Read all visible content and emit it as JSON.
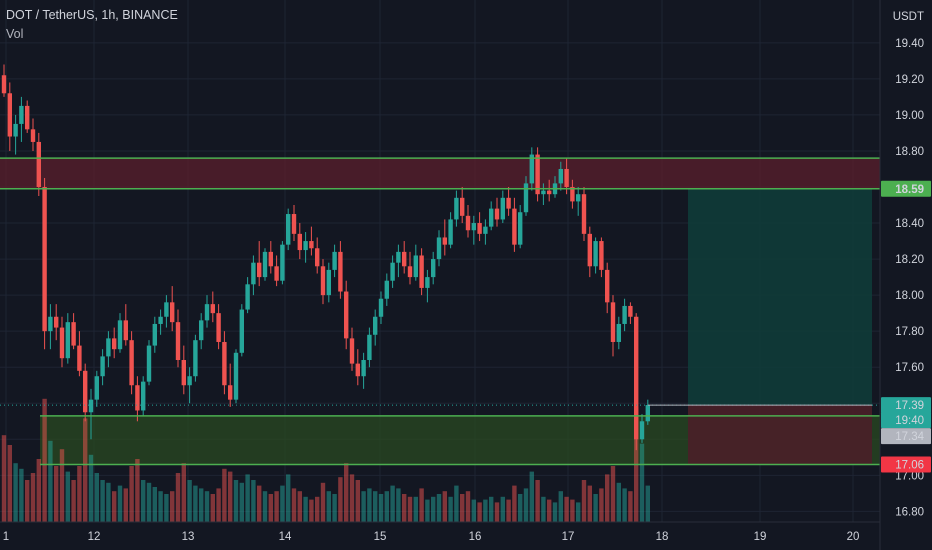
{
  "header": {
    "symbol_line": "DOT / TetherUS, 1h, BINANCE",
    "indicator": "Vol"
  },
  "axis": {
    "currency_label": "USDT"
  },
  "colors": {
    "background": "#131722",
    "grid": "#1e2433",
    "up": "#26a69a",
    "down": "#ef5350",
    "zone_line": "#4caf50",
    "resistance_fill": "#5b1f2c",
    "support_fill": "#2a4a22",
    "target_fill": "#0f3b38",
    "stop_fill": "#4a1f28"
  },
  "chart_data": {
    "type": "candlestick",
    "ylim": [
      16.78,
      19.46
    ],
    "x_tick_labels": [
      "1",
      "12",
      "13",
      "14",
      "15",
      "16",
      "17",
      "18",
      "19",
      "20"
    ],
    "y_tick_labels": [
      "19.40",
      "19.20",
      "19.00",
      "18.80",
      "18.60",
      "18.40",
      "18.20",
      "18.00",
      "17.80",
      "17.60",
      "17.40",
      "17.20",
      "17.00",
      "16.80"
    ],
    "price_labels": [
      {
        "label": "18.59",
        "value": 18.59,
        "kind": "zone-green"
      },
      {
        "label": "17.39",
        "value": 17.39,
        "kind": "last-price"
      },
      {
        "label": "19:40",
        "value": 17.39,
        "kind": "countdown"
      },
      {
        "label": "17.34",
        "value": 17.34,
        "kind": "grey"
      },
      {
        "label": "17.06",
        "value": 17.06,
        "kind": "stop-red"
      }
    ],
    "resistance_zone": [
      18.59,
      18.76
    ],
    "support_zone": [
      17.06,
      17.33
    ],
    "position": {
      "entry": 17.39,
      "target": 18.59,
      "stop": 17.06
    },
    "candles": [
      {
        "o": 19.22,
        "h": 19.28,
        "l": 19.1,
        "c": 19.12
      },
      {
        "o": 19.12,
        "h": 19.18,
        "l": 18.8,
        "c": 18.88
      },
      {
        "o": 18.88,
        "h": 19.0,
        "l": 18.78,
        "c": 18.95
      },
      {
        "o": 18.95,
        "h": 19.1,
        "l": 18.85,
        "c": 19.05
      },
      {
        "o": 19.05,
        "h": 19.08,
        "l": 18.9,
        "c": 18.92
      },
      {
        "o": 18.92,
        "h": 18.98,
        "l": 18.8,
        "c": 18.85
      },
      {
        "o": 18.85,
        "h": 18.9,
        "l": 18.55,
        "c": 18.6
      },
      {
        "o": 18.6,
        "h": 18.65,
        "l": 17.7,
        "c": 17.8
      },
      {
        "o": 17.8,
        "h": 17.95,
        "l": 17.7,
        "c": 17.88
      },
      {
        "o": 17.88,
        "h": 17.95,
        "l": 17.75,
        "c": 17.82
      },
      {
        "o": 17.82,
        "h": 17.88,
        "l": 17.6,
        "c": 17.65
      },
      {
        "o": 17.65,
        "h": 17.9,
        "l": 17.62,
        "c": 17.85
      },
      {
        "o": 17.85,
        "h": 17.9,
        "l": 17.7,
        "c": 17.72
      },
      {
        "o": 17.72,
        "h": 17.8,
        "l": 17.55,
        "c": 17.58
      },
      {
        "o": 17.58,
        "h": 17.62,
        "l": 17.3,
        "c": 17.35
      },
      {
        "o": 17.35,
        "h": 17.48,
        "l": 17.2,
        "c": 17.42
      },
      {
        "o": 17.42,
        "h": 17.58,
        "l": 17.38,
        "c": 17.55
      },
      {
        "o": 17.55,
        "h": 17.7,
        "l": 17.5,
        "c": 17.66
      },
      {
        "o": 17.66,
        "h": 17.8,
        "l": 17.6,
        "c": 17.76
      },
      {
        "o": 17.76,
        "h": 17.82,
        "l": 17.65,
        "c": 17.7
      },
      {
        "o": 17.7,
        "h": 17.9,
        "l": 17.68,
        "c": 17.86
      },
      {
        "o": 17.86,
        "h": 17.95,
        "l": 17.72,
        "c": 17.75
      },
      {
        "o": 17.75,
        "h": 17.8,
        "l": 17.45,
        "c": 17.5
      },
      {
        "o": 17.5,
        "h": 17.55,
        "l": 17.3,
        "c": 17.36
      },
      {
        "o": 17.36,
        "h": 17.55,
        "l": 17.33,
        "c": 17.52
      },
      {
        "o": 17.52,
        "h": 17.75,
        "l": 17.5,
        "c": 17.72
      },
      {
        "o": 17.72,
        "h": 17.88,
        "l": 17.68,
        "c": 17.84
      },
      {
        "o": 17.84,
        "h": 17.92,
        "l": 17.78,
        "c": 17.88
      },
      {
        "o": 17.88,
        "h": 18.0,
        "l": 17.82,
        "c": 17.96
      },
      {
        "o": 17.96,
        "h": 18.05,
        "l": 17.8,
        "c": 17.85
      },
      {
        "o": 17.85,
        "h": 17.92,
        "l": 17.6,
        "c": 17.64
      },
      {
        "o": 17.64,
        "h": 17.72,
        "l": 17.45,
        "c": 17.5
      },
      {
        "o": 17.5,
        "h": 17.6,
        "l": 17.4,
        "c": 17.55
      },
      {
        "o": 17.55,
        "h": 17.78,
        "l": 17.52,
        "c": 17.75
      },
      {
        "o": 17.75,
        "h": 17.9,
        "l": 17.7,
        "c": 17.86
      },
      {
        "o": 17.86,
        "h": 18.0,
        "l": 17.82,
        "c": 17.95
      },
      {
        "o": 17.95,
        "h": 18.02,
        "l": 17.85,
        "c": 17.9
      },
      {
        "o": 17.9,
        "h": 17.95,
        "l": 17.7,
        "c": 17.74
      },
      {
        "o": 17.74,
        "h": 17.8,
        "l": 17.45,
        "c": 17.5
      },
      {
        "o": 17.5,
        "h": 17.62,
        "l": 17.38,
        "c": 17.42
      },
      {
        "o": 17.42,
        "h": 17.7,
        "l": 17.4,
        "c": 17.68
      },
      {
        "o": 17.68,
        "h": 17.95,
        "l": 17.66,
        "c": 17.92
      },
      {
        "o": 17.92,
        "h": 18.1,
        "l": 17.9,
        "c": 18.06
      },
      {
        "o": 18.06,
        "h": 18.22,
        "l": 18.0,
        "c": 18.18
      },
      {
        "o": 18.18,
        "h": 18.3,
        "l": 18.05,
        "c": 18.1
      },
      {
        "o": 18.1,
        "h": 18.26,
        "l": 18.08,
        "c": 18.24
      },
      {
        "o": 18.24,
        "h": 18.3,
        "l": 18.12,
        "c": 18.16
      },
      {
        "o": 18.16,
        "h": 18.22,
        "l": 18.05,
        "c": 18.08
      },
      {
        "o": 18.08,
        "h": 18.3,
        "l": 18.06,
        "c": 18.28
      },
      {
        "o": 18.28,
        "h": 18.48,
        "l": 18.25,
        "c": 18.45
      },
      {
        "o": 18.45,
        "h": 18.5,
        "l": 18.3,
        "c": 18.34
      },
      {
        "o": 18.34,
        "h": 18.4,
        "l": 18.2,
        "c": 18.25
      },
      {
        "o": 18.25,
        "h": 18.35,
        "l": 18.18,
        "c": 18.3
      },
      {
        "o": 18.3,
        "h": 18.38,
        "l": 18.22,
        "c": 18.26
      },
      {
        "o": 18.26,
        "h": 18.32,
        "l": 18.12,
        "c": 18.16
      },
      {
        "o": 18.16,
        "h": 18.2,
        "l": 17.95,
        "c": 18.0
      },
      {
        "o": 18.0,
        "h": 18.18,
        "l": 17.96,
        "c": 18.14
      },
      {
        "o": 18.14,
        "h": 18.28,
        "l": 18.1,
        "c": 18.24
      },
      {
        "o": 18.24,
        "h": 18.3,
        "l": 17.98,
        "c": 18.02
      },
      {
        "o": 18.02,
        "h": 18.08,
        "l": 17.7,
        "c": 17.76
      },
      {
        "o": 17.76,
        "h": 17.82,
        "l": 17.58,
        "c": 17.62
      },
      {
        "o": 17.62,
        "h": 17.7,
        "l": 17.5,
        "c": 17.55
      },
      {
        "o": 17.55,
        "h": 17.68,
        "l": 17.48,
        "c": 17.64
      },
      {
        "o": 17.64,
        "h": 17.82,
        "l": 17.6,
        "c": 17.78
      },
      {
        "o": 17.78,
        "h": 17.92,
        "l": 17.72,
        "c": 17.88
      },
      {
        "o": 17.88,
        "h": 18.02,
        "l": 17.84,
        "c": 17.98
      },
      {
        "o": 17.98,
        "h": 18.12,
        "l": 17.94,
        "c": 18.08
      },
      {
        "o": 18.08,
        "h": 18.22,
        "l": 18.04,
        "c": 18.18
      },
      {
        "o": 18.18,
        "h": 18.28,
        "l": 18.1,
        "c": 18.24
      },
      {
        "o": 18.24,
        "h": 18.3,
        "l": 18.12,
        "c": 18.16
      },
      {
        "o": 18.16,
        "h": 18.24,
        "l": 18.06,
        "c": 18.1
      },
      {
        "o": 18.1,
        "h": 18.28,
        "l": 18.08,
        "c": 18.22
      },
      {
        "o": 18.22,
        "h": 18.26,
        "l": 18.0,
        "c": 18.04
      },
      {
        "o": 18.04,
        "h": 18.14,
        "l": 17.96,
        "c": 18.1
      },
      {
        "o": 18.1,
        "h": 18.24,
        "l": 18.06,
        "c": 18.2
      },
      {
        "o": 18.2,
        "h": 18.36,
        "l": 18.16,
        "c": 18.32
      },
      {
        "o": 18.32,
        "h": 18.42,
        "l": 18.22,
        "c": 18.28
      },
      {
        "o": 18.28,
        "h": 18.46,
        "l": 18.26,
        "c": 18.42
      },
      {
        "o": 18.42,
        "h": 18.58,
        "l": 18.38,
        "c": 18.54
      },
      {
        "o": 18.54,
        "h": 18.6,
        "l": 18.4,
        "c": 18.44
      },
      {
        "o": 18.44,
        "h": 18.5,
        "l": 18.32,
        "c": 18.36
      },
      {
        "o": 18.36,
        "h": 18.44,
        "l": 18.28,
        "c": 18.4
      },
      {
        "o": 18.4,
        "h": 18.46,
        "l": 18.3,
        "c": 18.34
      },
      {
        "o": 18.34,
        "h": 18.42,
        "l": 18.28,
        "c": 18.38
      },
      {
        "o": 18.38,
        "h": 18.52,
        "l": 18.36,
        "c": 18.48
      },
      {
        "o": 18.48,
        "h": 18.54,
        "l": 18.38,
        "c": 18.42
      },
      {
        "o": 18.42,
        "h": 18.58,
        "l": 18.4,
        "c": 18.54
      },
      {
        "o": 18.54,
        "h": 18.6,
        "l": 18.44,
        "c": 18.48
      },
      {
        "o": 18.48,
        "h": 18.54,
        "l": 18.24,
        "c": 18.28
      },
      {
        "o": 18.28,
        "h": 18.5,
        "l": 18.26,
        "c": 18.46
      },
      {
        "o": 18.46,
        "h": 18.66,
        "l": 18.44,
        "c": 18.62
      },
      {
        "o": 18.62,
        "h": 18.82,
        "l": 18.58,
        "c": 18.78
      },
      {
        "o": 18.78,
        "h": 18.82,
        "l": 18.52,
        "c": 18.56
      },
      {
        "o": 18.56,
        "h": 18.62,
        "l": 18.5,
        "c": 18.58
      },
      {
        "o": 18.58,
        "h": 18.64,
        "l": 18.52,
        "c": 18.56
      },
      {
        "o": 18.56,
        "h": 18.66,
        "l": 18.54,
        "c": 18.62
      },
      {
        "o": 18.62,
        "h": 18.74,
        "l": 18.58,
        "c": 18.7
      },
      {
        "o": 18.7,
        "h": 18.76,
        "l": 18.56,
        "c": 18.6
      },
      {
        "o": 18.6,
        "h": 18.64,
        "l": 18.48,
        "c": 18.52
      },
      {
        "o": 18.52,
        "h": 18.6,
        "l": 18.44,
        "c": 18.56
      },
      {
        "o": 18.56,
        "h": 18.6,
        "l": 18.3,
        "c": 18.34
      },
      {
        "o": 18.34,
        "h": 18.38,
        "l": 18.1,
        "c": 18.16
      },
      {
        "o": 18.16,
        "h": 18.32,
        "l": 18.12,
        "c": 18.3
      },
      {
        "o": 18.3,
        "h": 18.32,
        "l": 18.1,
        "c": 18.14
      },
      {
        "o": 18.14,
        "h": 18.18,
        "l": 17.9,
        "c": 17.96
      },
      {
        "o": 17.96,
        "h": 18.0,
        "l": 17.66,
        "c": 17.74
      },
      {
        "o": 17.74,
        "h": 17.88,
        "l": 17.7,
        "c": 17.84
      },
      {
        "o": 17.84,
        "h": 17.98,
        "l": 17.8,
        "c": 17.94
      },
      {
        "o": 17.94,
        "h": 17.96,
        "l": 17.84,
        "c": 17.88
      },
      {
        "o": 17.88,
        "h": 17.9,
        "l": 17.14,
        "c": 17.2
      },
      {
        "o": 17.2,
        "h": 17.34,
        "l": 17.18,
        "c": 17.3
      },
      {
        "o": 17.3,
        "h": 17.42,
        "l": 17.28,
        "c": 17.39
      }
    ],
    "volumes": [
      0.62,
      0.55,
      0.42,
      0.38,
      0.3,
      0.35,
      0.45,
      0.88,
      0.58,
      0.4,
      0.52,
      0.36,
      0.3,
      0.4,
      0.74,
      0.48,
      0.35,
      0.3,
      0.28,
      0.22,
      0.26,
      0.24,
      0.4,
      0.45,
      0.3,
      0.28,
      0.25,
      0.22,
      0.2,
      0.22,
      0.35,
      0.42,
      0.3,
      0.26,
      0.24,
      0.22,
      0.2,
      0.24,
      0.38,
      0.36,
      0.3,
      0.28,
      0.34,
      0.3,
      0.26,
      0.22,
      0.2,
      0.22,
      0.26,
      0.34,
      0.24,
      0.22,
      0.18,
      0.16,
      0.18,
      0.28,
      0.22,
      0.2,
      0.32,
      0.42,
      0.34,
      0.3,
      0.22,
      0.24,
      0.22,
      0.2,
      0.22,
      0.26,
      0.24,
      0.2,
      0.18,
      0.18,
      0.24,
      0.16,
      0.18,
      0.2,
      0.22,
      0.18,
      0.26,
      0.2,
      0.22,
      0.16,
      0.14,
      0.16,
      0.18,
      0.14,
      0.18,
      0.16,
      0.26,
      0.2,
      0.24,
      0.36,
      0.3,
      0.18,
      0.16,
      0.14,
      0.22,
      0.18,
      0.16,
      0.14,
      0.3,
      0.26,
      0.2,
      0.24,
      0.34,
      0.4,
      0.28,
      0.24,
      0.22,
      0.82,
      0.56,
      0.26
    ]
  }
}
